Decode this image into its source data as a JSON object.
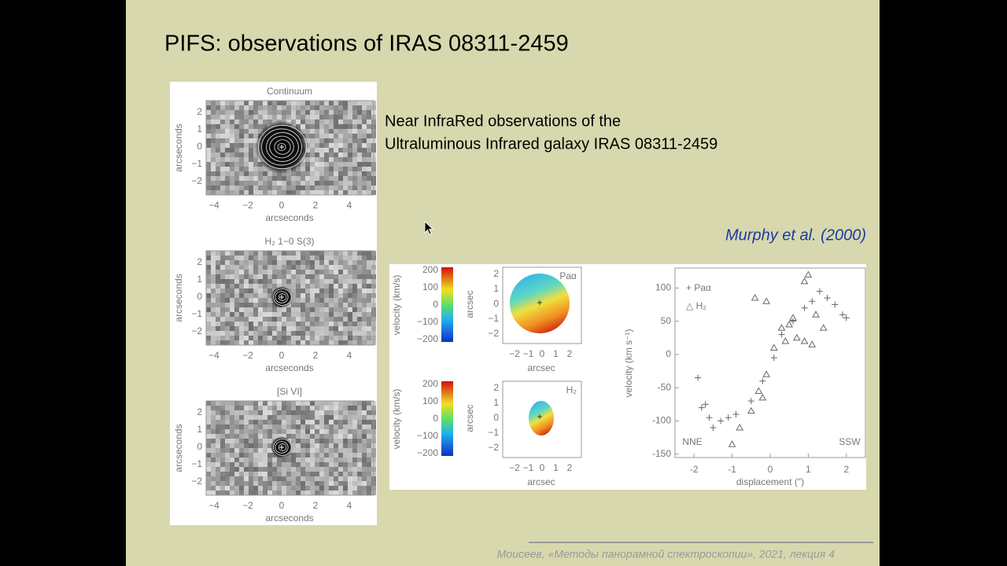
{
  "slide": {
    "title": "PIFS: observations of IRAS 08311-2459",
    "text": [
      "Near InfraRed observations of the",
      "Ultraluminous Infrared galaxy IRAS 08311-2459"
    ],
    "citation": "Murphy et al. (2000)",
    "footer": "Моисеев, «Методы панорамной спектроскопии», 2021, лекция 4"
  },
  "left_figure": {
    "panels": [
      {
        "title": "Continuum"
      },
      {
        "title": "H₂ 1−0 S(3)"
      },
      {
        "title": "[Si VI]"
      }
    ],
    "x_label": "arcseconds",
    "y_label": "arcseconds",
    "xticks": [
      "−4",
      "−2",
      "0",
      "2",
      "4"
    ],
    "yticks": [
      "2",
      "1",
      "0",
      "−1",
      "−2"
    ]
  },
  "velocity_maps": {
    "colorbar_label": "velocity (km/s)",
    "colorbar_ticks": [
      "200",
      "100",
      "0",
      "−100",
      "−200"
    ],
    "axis_label": "arcsec",
    "yticks": [
      "2",
      "1",
      "0",
      "−1",
      "−2"
    ],
    "xticks": [
      "−2",
      "−1",
      "0",
      "1",
      "2"
    ],
    "maps": [
      {
        "label": "Paα"
      },
      {
        "label": "H₂"
      }
    ]
  },
  "scatter": {
    "y_label": "velocity (km s⁻¹)",
    "x_label": "displacement (″)",
    "xlim": [
      -2.5,
      2.5
    ],
    "ylim": [
      -155,
      130
    ],
    "xticks": [
      -2,
      -1,
      0,
      1,
      2
    ],
    "yticks": [
      100,
      50,
      0,
      -50,
      -100,
      -150
    ],
    "legend": [
      "+ Paα",
      "△ H₂"
    ],
    "annotations": [
      "NNE",
      "SSW"
    ],
    "paa": [
      [
        -1.9,
        -35
      ],
      [
        -1.8,
        -80
      ],
      [
        -1.7,
        -75
      ],
      [
        -1.6,
        -95
      ],
      [
        -1.5,
        -110
      ],
      [
        -1.3,
        -100
      ],
      [
        -1.1,
        -95
      ],
      [
        -0.9,
        -90
      ],
      [
        -0.5,
        -70
      ],
      [
        -0.2,
        -40
      ],
      [
        0.1,
        -5
      ],
      [
        0.3,
        30
      ],
      [
        0.6,
        50
      ],
      [
        0.9,
        70
      ],
      [
        1.1,
        80
      ],
      [
        1.3,
        95
      ],
      [
        1.5,
        85
      ],
      [
        1.7,
        75
      ],
      [
        1.9,
        60
      ],
      [
        2.0,
        55
      ]
    ],
    "h2": [
      [
        -1.0,
        -135
      ],
      [
        -0.8,
        -110
      ],
      [
        -0.5,
        -85
      ],
      [
        -0.3,
        -55
      ],
      [
        -0.2,
        -65
      ],
      [
        -0.1,
        -30
      ],
      [
        0.1,
        10
      ],
      [
        0.3,
        40
      ],
      [
        0.4,
        20
      ],
      [
        0.5,
        45
      ],
      [
        0.6,
        55
      ],
      [
        0.7,
        25
      ],
      [
        0.9,
        20
      ],
      [
        1.1,
        15
      ],
      [
        1.2,
        60
      ],
      [
        0.9,
        110
      ],
      [
        1.0,
        120
      ],
      [
        1.4,
        40
      ],
      [
        -0.4,
        85
      ],
      [
        -0.1,
        80
      ]
    ]
  }
}
